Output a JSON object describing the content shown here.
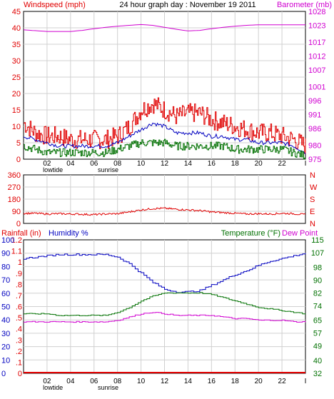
{
  "colors": {
    "red": "#e00000",
    "blue": "#0000c0",
    "green": "#007000",
    "magenta": "#d000d0",
    "grid": "#d0d0d0",
    "text": "#000000"
  },
  "chart_data": [
    {
      "panel": "wind-baro",
      "type": "line",
      "title": "24 hour graph day : November 19 2011",
      "ylabel": "Windspeed (mph)",
      "y2label": "Barometer (mb)",
      "x_ticks": [
        "02",
        "04",
        "06",
        "08",
        "10",
        "12",
        "14",
        "16",
        "18",
        "20",
        "22"
      ],
      "x_end_tick": "I",
      "x_markers": {
        "lowtide": "lowtide",
        "sunrise": "sunrise"
      },
      "ylim": [
        0,
        45
      ],
      "y_ticks": [
        "0",
        "5",
        "10",
        "15",
        "20",
        "25",
        "30",
        "35",
        "40",
        "45"
      ],
      "y2lim": [
        975,
        1028
      ],
      "y2_ticks": [
        "975",
        "980",
        "986",
        "991",
        "996",
        "1001",
        "1007",
        "1012",
        "1017",
        "1023",
        "1028"
      ],
      "grid": true,
      "series": [
        {
          "name": "Windspeed",
          "color": "#e00000",
          "style": "gust",
          "x": [
            0,
            1,
            2,
            3,
            4,
            5,
            6,
            7,
            8,
            9,
            10,
            11,
            12,
            13,
            14,
            15,
            16,
            17,
            18,
            19,
            20,
            21,
            22,
            23,
            24
          ],
          "values": [
            11,
            8,
            7,
            7,
            6,
            6,
            6,
            6,
            7,
            10,
            15,
            17,
            15,
            13,
            14,
            14,
            12,
            11,
            10,
            9,
            8,
            8,
            7,
            6,
            4
          ]
        },
        {
          "name": "Average windspeed",
          "color": "#0000c0",
          "x": [
            0,
            1,
            2,
            3,
            4,
            5,
            6,
            7,
            8,
            9,
            10,
            11,
            12,
            13,
            14,
            15,
            16,
            17,
            18,
            19,
            20,
            21,
            22,
            23,
            24
          ],
          "values": [
            7,
            6,
            5,
            4,
            4,
            4,
            4,
            4,
            5,
            7,
            9,
            11,
            10,
            8,
            8,
            8,
            7,
            7,
            6,
            6,
            5,
            5,
            5,
            4,
            2
          ]
        },
        {
          "name": "Wind lull",
          "color": "#007000",
          "style": "lull",
          "x": [
            0,
            1,
            2,
            3,
            4,
            5,
            6,
            7,
            8,
            9,
            10,
            11,
            12,
            13,
            14,
            15,
            16,
            17,
            18,
            19,
            20,
            21,
            22,
            23,
            24
          ],
          "values": [
            4,
            3,
            2,
            2,
            2,
            2,
            2,
            2,
            3,
            4,
            5,
            5,
            5,
            4,
            4,
            4,
            4,
            4,
            3,
            3,
            3,
            3,
            3,
            2,
            1
          ]
        },
        {
          "name": "Barometer",
          "color": "#d000d0",
          "axis": "y2",
          "x": [
            0,
            1,
            2,
            3,
            4,
            5,
            6,
            7,
            8,
            9,
            10,
            11,
            12,
            13,
            14,
            15,
            16,
            17,
            18,
            19,
            20,
            21,
            22,
            23,
            24
          ],
          "values": [
            1021.4,
            1021.1,
            1020.8,
            1020.8,
            1020.8,
            1021.2,
            1021.8,
            1022.3,
            1022.7,
            1023.0,
            1023.3,
            1023.0,
            1022.3,
            1021.6,
            1021.0,
            1021.2,
            1021.8,
            1022.3,
            1022.7,
            1023.0,
            1023.2,
            1023.2,
            1023.2,
            1023.2,
            1023.2
          ]
        }
      ]
    },
    {
      "panel": "direction",
      "type": "line",
      "ylim": [
        0,
        360
      ],
      "y_ticks": [
        "0",
        "90",
        "180",
        "270",
        "360"
      ],
      "right_labels": [
        "N",
        "W",
        "S",
        "E",
        "N"
      ],
      "grid": true,
      "series": [
        {
          "name": "Wind direction",
          "color": "#e00000",
          "x": [
            0,
            1,
            2,
            3,
            4,
            5,
            6,
            7,
            8,
            9,
            10,
            11,
            12,
            13,
            14,
            15,
            16,
            17,
            18,
            19,
            20,
            21,
            22,
            23,
            24
          ],
          "values": [
            75,
            75,
            70,
            72,
            70,
            68,
            65,
            70,
            72,
            85,
            100,
            110,
            112,
            105,
            100,
            95,
            85,
            80,
            75,
            70,
            72,
            70,
            75,
            72,
            65
          ]
        }
      ]
    },
    {
      "panel": "rain-hum-temp",
      "type": "line",
      "ylabel": "Rainfall (in)",
      "ylabel2": "Humidity %",
      "y2label": "Temperature (°F)",
      "y2label2": "Dew Point",
      "x_ticks": [
        "02",
        "04",
        "06",
        "08",
        "10",
        "12",
        "14",
        "16",
        "18",
        "20",
        "22"
      ],
      "x_end_tick": "I",
      "x_markers": {
        "lowtide": "lowtide",
        "sunrise": "sunrise"
      },
      "rain_ticks": [
        "0",
        ".1",
        ".2",
        ".3",
        ".4",
        ".5",
        ".6",
        ".7",
        ".8",
        ".9",
        "1",
        "1.1",
        "1.2"
      ],
      "humidity_ticks": [
        "0",
        "10",
        "20",
        "30",
        "40",
        "50",
        "60",
        "70",
        "80",
        "90",
        "100"
      ],
      "humidity_lim": [
        0,
        100
      ],
      "temp_ticks": [
        "32",
        "40",
        "49",
        "57",
        "65",
        "74",
        "82",
        "90",
        "98",
        "107",
        "115"
      ],
      "temp_lim": [
        32,
        115
      ],
      "grid": true,
      "series": [
        {
          "name": "Humidity",
          "color": "#0000c0",
          "axis": "humidity",
          "x": [
            0,
            1,
            2,
            3,
            4,
            5,
            6,
            7,
            8,
            9,
            10,
            11,
            12,
            13,
            14,
            15,
            16,
            17,
            18,
            19,
            20,
            21,
            22,
            23,
            24
          ],
          "values": [
            86,
            87,
            88,
            89,
            89,
            89,
            89,
            89,
            87,
            82,
            75,
            68,
            63,
            61,
            61,
            62,
            66,
            70,
            74,
            77,
            81,
            84,
            86,
            88,
            90
          ]
        },
        {
          "name": "Rainfall",
          "color": "#e00000",
          "axis": "rain",
          "x": [
            0,
            24
          ],
          "values": [
            0,
            0
          ]
        },
        {
          "name": "Temperature",
          "color": "#007000",
          "axis": "temp",
          "x": [
            0,
            1,
            2,
            3,
            4,
            5,
            6,
            7,
            8,
            9,
            10,
            11,
            12,
            13,
            14,
            15,
            16,
            17,
            18,
            19,
            20,
            21,
            22,
            23,
            24
          ],
          "values": [
            69,
            69,
            69,
            68,
            68,
            68,
            68,
            68,
            70,
            73,
            77,
            80,
            82,
            82,
            82,
            82,
            81,
            79,
            77,
            75,
            73,
            72,
            71,
            70,
            69
          ]
        },
        {
          "name": "Dew Point",
          "color": "#d000d0",
          "axis": "temp",
          "x": [
            0,
            1,
            2,
            3,
            4,
            5,
            6,
            7,
            8,
            9,
            10,
            11,
            12,
            13,
            14,
            15,
            16,
            17,
            18,
            19,
            20,
            21,
            22,
            23,
            24
          ],
          "values": [
            64,
            64,
            64,
            64,
            64,
            64,
            64,
            64,
            65,
            67,
            69,
            70,
            69,
            68,
            68,
            68,
            68,
            67,
            66,
            66,
            65,
            65,
            65,
            64,
            64
          ]
        }
      ]
    }
  ]
}
